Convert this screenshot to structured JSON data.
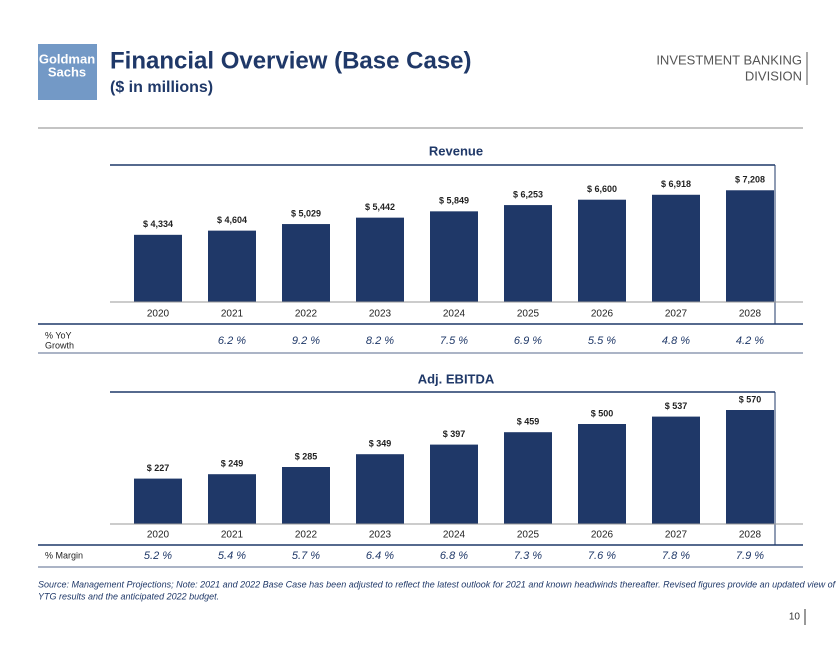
{
  "header": {
    "logo": [
      "Goldman",
      "Sachs"
    ],
    "title": "Financial Overview (Base Case)",
    "subtitle": "($ in millions)",
    "division": [
      "INVESTMENT BANKING",
      "DIVISION"
    ]
  },
  "chart_data": [
    {
      "type": "bar",
      "title": "Revenue",
      "categories": [
        "2020",
        "2021",
        "2022",
        "2023",
        "2024",
        "2025",
        "2026",
        "2027",
        "2028"
      ],
      "values": [
        4334,
        4604,
        5029,
        5442,
        5849,
        6253,
        6600,
        6918,
        7208
      ],
      "value_labels": [
        "$ 4,334",
        "$ 4,604",
        "$ 5,029",
        "$ 5,442",
        "$ 5,849",
        "$ 6,253",
        "$ 6,600",
        "$ 6,918",
        "$ 7,208"
      ],
      "color": "#1f3868",
      "ylim": [
        0,
        8000
      ],
      "row": {
        "label": [
          "% YoY",
          "Growth"
        ],
        "cells": [
          "6.2 %",
          "9.2 %",
          "8.2 %",
          "7.5 %",
          "6.9 %",
          "5.5 %",
          "4.8 %",
          "4.2 %"
        ]
      }
    },
    {
      "type": "bar",
      "title": "Adj. EBITDA",
      "categories": [
        "2020",
        "2021",
        "2022",
        "2023",
        "2024",
        "2025",
        "2026",
        "2027",
        "2028"
      ],
      "values": [
        227,
        249,
        285,
        349,
        397,
        459,
        500,
        537,
        570
      ],
      "value_labels": [
        "$ 227",
        "$ 249",
        "$ 285",
        "$ 349",
        "$ 397",
        "$ 459",
        "$ 500",
        "$ 537",
        "$ 570"
      ],
      "color": "#1f3868",
      "ylim": [
        0,
        600
      ],
      "row": {
        "label": [
          "% Margin"
        ],
        "cells": [
          "5.2 %",
          "5.4 %",
          "5.7 %",
          "6.4 %",
          "6.8 %",
          "7.3 %",
          "7.6 %",
          "7.8 %",
          "7.9 %"
        ]
      }
    }
  ],
  "footer": {
    "note": [
      "Source: Management Projections; Note: 2021 and 2022 Base Case has been adjusted to reflect the latest outlook for 2021 and known headwinds thereafter. Revised figures provide an updated view of",
      "YTG results and the anticipated 2022 budget."
    ],
    "page": "10"
  }
}
